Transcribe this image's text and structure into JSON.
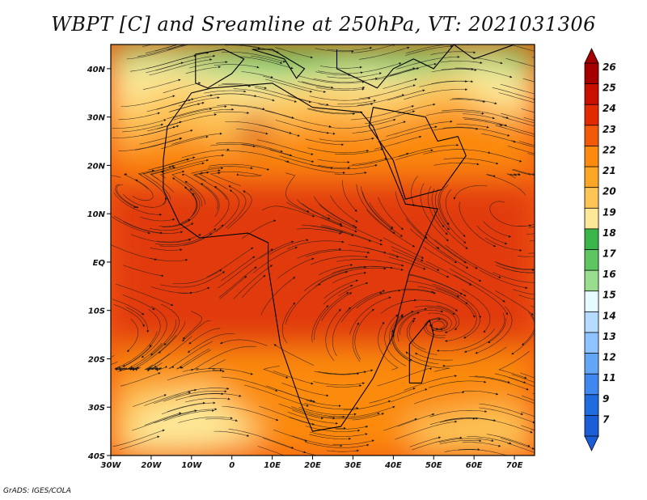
{
  "title": "WBPT [C] and Sreamline at 250hPa, VT: 2021031306",
  "credit": "GrADS: IGES/COLA",
  "map": {
    "lon_labels": [
      "30W",
      "20W",
      "10W",
      "0",
      "10E",
      "20E",
      "30E",
      "40E",
      "50E",
      "60E",
      "70E"
    ],
    "lat_labels": [
      "40N",
      "30N",
      "20N",
      "10N",
      "EQ",
      "10S",
      "20S",
      "30S",
      "40S"
    ],
    "lon_range": [
      -30,
      75
    ],
    "lat_range": [
      -40,
      45
    ]
  },
  "colorbar": {
    "levels": [
      "26",
      "25",
      "24",
      "23",
      "22",
      "21",
      "20",
      "19",
      "18",
      "17",
      "16",
      "15",
      "14",
      "13",
      "12",
      "11",
      "9",
      "7"
    ],
    "colors": [
      "#a50000",
      "#c80f00",
      "#e22a00",
      "#f25a0a",
      "#fb8a0e",
      "#fca626",
      "#fdc456",
      "#fde898",
      "#3ab54a",
      "#5ec660",
      "#99dd8e",
      "#e6fbff",
      "#b5dcff",
      "#8ec3ff",
      "#64a6f6",
      "#3f88ef",
      "#1f6be0",
      "#1a5dd6"
    ]
  },
  "field_colors": {
    "strong_red": "#e13a0a",
    "orange_red": "#f25a0a",
    "orange": "#fb8a0e",
    "light_orange": "#fdc456",
    "pale_yellow": "#fde898",
    "green": "#3ab54a",
    "light_green": "#99dd8e"
  }
}
